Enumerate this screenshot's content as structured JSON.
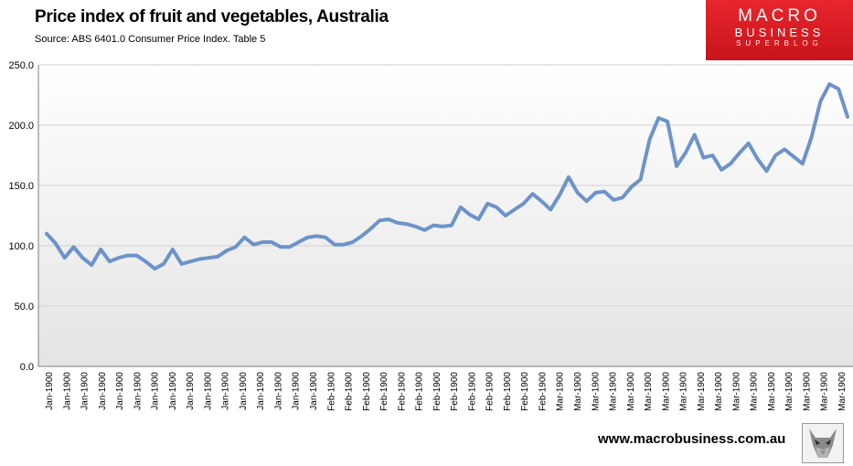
{
  "header": {
    "title": "Price index of fruit and vegetables, Australia",
    "source": "Source: ABS 6401.0 Consumer Price Index. Table 5"
  },
  "logo": {
    "line1": "MACRO",
    "line2": "BUSINESS",
    "line3": "SUPERBLOG"
  },
  "footer": {
    "url": "www.macrobusiness.com.au"
  },
  "colors": {
    "line": "#6d93c9",
    "plot_bg_top": "#ffffff",
    "plot_bg_bottom": "#e4e4e4",
    "logo_red": "#d71920",
    "grid": "#d2d2d2"
  },
  "chart_data": {
    "type": "line",
    "title": "Price index of fruit and vegetables, Australia",
    "ylim": [
      0,
      250
    ],
    "y_ticks": [
      "0.0",
      "50.0",
      "100.0",
      "150.0",
      "200.0",
      "250.0"
    ],
    "grid": true,
    "legend": "none",
    "x_tick_labels": [
      "Jan-1900",
      "Jan-1900",
      "Jan-1900",
      "Jan-1900",
      "Jan-1900",
      "Jan-1900",
      "Jan-1900",
      "Jan-1900",
      "Jan-1900",
      "Jan-1900",
      "Jan-1900",
      "Jan-1900",
      "Jan-1900",
      "Jan-1900",
      "Jan-1900",
      "Jan-1900",
      "Feb-1900",
      "Feb-1900",
      "Feb-1900",
      "Feb-1900",
      "Feb-1900",
      "Feb-1900",
      "Feb-1900",
      "Feb-1900",
      "Feb-1900",
      "Feb-1900",
      "Feb-1900",
      "Feb-1900",
      "Feb-1900",
      "Mar-1900",
      "Mar-1900",
      "Mar-1900",
      "Mar-1900",
      "Mar-1900",
      "Mar-1900",
      "Mar-1900",
      "Mar-1900",
      "Mar-1900",
      "Mar-1900",
      "Mar-1900",
      "Mar-1900",
      "Mar-1900",
      "Mar-1900",
      "Mar-1900",
      "Mar-1900",
      "Mar-1900"
    ],
    "values": [
      110,
      102,
      90,
      99,
      90,
      84,
      97,
      87,
      90,
      92,
      92,
      87,
      81,
      85,
      97,
      85,
      87,
      89,
      90,
      91,
      96,
      99,
      107,
      101,
      103,
      103,
      99,
      99,
      103,
      107,
      108,
      107,
      101,
      101,
      103,
      108,
      114,
      121,
      122,
      119,
      118,
      116,
      113,
      117,
      116,
      117,
      132,
      126,
      122,
      135,
      132,
      125,
      130,
      135,
      143,
      137,
      130,
      142,
      157,
      144,
      137,
      144,
      145,
      138,
      140,
      149,
      155,
      188,
      206,
      203,
      166,
      177,
      192,
      173,
      175,
      163,
      168,
      177,
      185,
      172,
      162,
      175,
      180,
      174,
      168,
      190,
      220,
      234,
      230,
      207
    ]
  }
}
